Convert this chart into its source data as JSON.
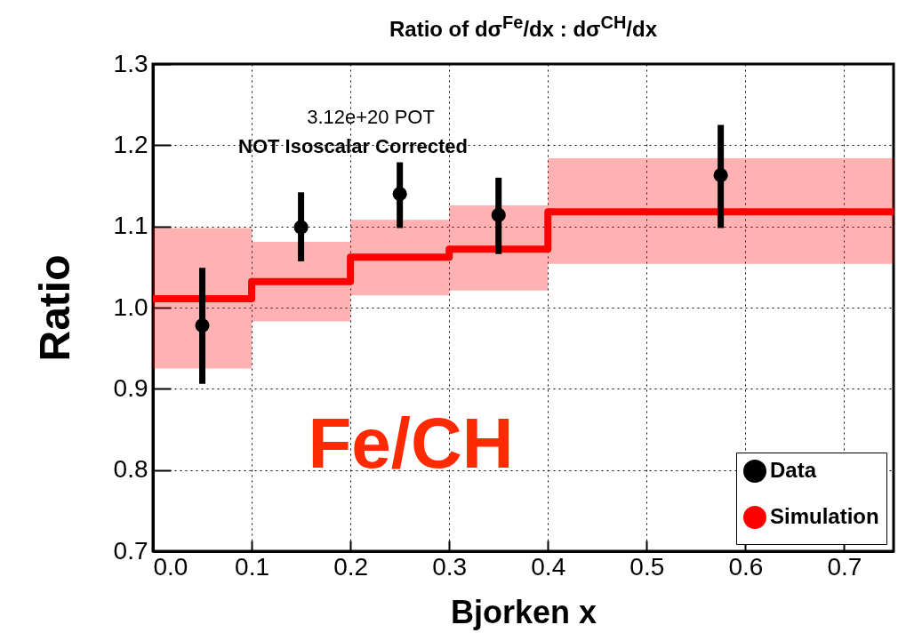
{
  "chart_data": {
    "type": "scatter",
    "title": "Ratio of dσ$^{Fe}$/dx : dσ$^{CH}$/dx",
    "xlabel": "Bjorken x",
    "ylabel": "Ratio",
    "annotations": [
      "3.12e+20 POT",
      "NOT Isoscalar Corrected",
      "Fe/CH"
    ],
    "series": [
      {
        "name": "Data",
        "color": "#000000",
        "x": [
          0.05,
          0.15,
          0.25,
          0.35,
          0.575
        ],
        "values": [
          0.978,
          1.099,
          1.14,
          1.114,
          1.163
        ],
        "marker": "circle",
        "errors": [
          [
            0.906,
            1.049
          ],
          [
            1.057,
            1.142
          ],
          [
            1.098,
            1.179
          ],
          [
            1.066,
            1.16
          ],
          [
            1.098,
            1.225
          ]
        ]
      },
      {
        "name": "Simulation",
        "type": "step",
        "color": "#ff0000",
        "x": [
          0,
          0.1,
          0.2,
          0.3,
          0.4,
          0.75
        ],
        "values": [
          1.011,
          1.032,
          1.062,
          1.072,
          1.118,
          1.118
        ],
        "lower": [
          0.925,
          0.983,
          1.015,
          1.021,
          1.054,
          1.054
        ],
        "upper": [
          1.098,
          1.081,
          1.108,
          1.126,
          1.184,
          1.184
        ]
      }
    ],
    "xlim": [
      0,
      0.75
    ],
    "xticks": [
      {
        "value": 0,
        "label": "0.0"
      },
      0.1,
      0.2,
      0.3,
      0.4,
      0.5,
      0.6,
      0.7
    ],
    "ylim": [
      0.7,
      1.3
    ],
    "yticks": [
      0.7,
      0.8,
      0.9,
      {
        "value": 1,
        "label": "1.0"
      },
      1.1,
      1.2,
      1.3
    ],
    "grid": true,
    "legend": "bottom right"
  }
}
